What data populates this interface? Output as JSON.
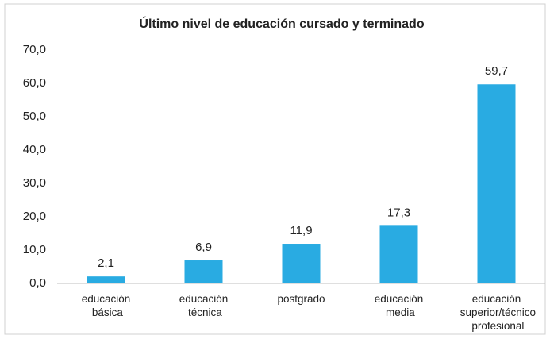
{
  "chart_data": {
    "type": "bar",
    "title": "Último nivel de educación cursado y terminado",
    "categories": [
      "educación básica",
      "educación técnica",
      "postgrado",
      "educación media",
      "educación superior/técnico profesional"
    ],
    "values": [
      2.1,
      6.9,
      11.9,
      17.3,
      59.7
    ],
    "value_labels": [
      "2,1",
      "6,9",
      "11,9",
      "17,3",
      "59,7"
    ],
    "color": "#29abe2",
    "ylim": [
      0,
      70
    ],
    "yticks": [
      {
        "value": 0,
        "label": "0,0"
      },
      {
        "value": 10,
        "label": "10,0"
      },
      {
        "value": 20,
        "label": "20,0"
      },
      {
        "value": 30,
        "label": "30,0"
      },
      {
        "value": 40,
        "label": "40,0"
      },
      {
        "value": 50,
        "label": "50,0"
      },
      {
        "value": 60,
        "label": "60,0"
      },
      {
        "value": 70,
        "label": "70,0"
      }
    ],
    "grid": false
  }
}
